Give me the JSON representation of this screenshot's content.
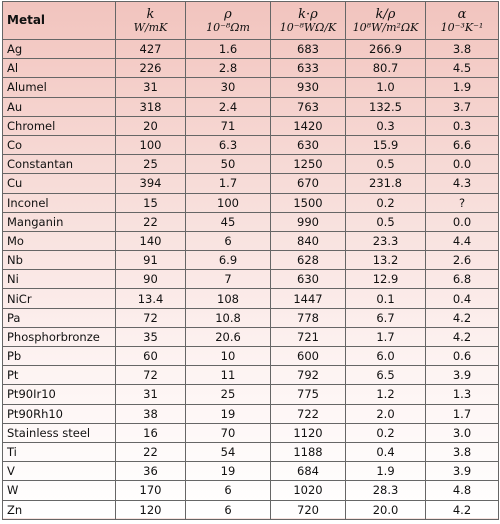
{
  "table": {
    "header": [
      {
        "symbol": "Metal"
      },
      {
        "symbol": "k",
        "unit": "W/mK"
      },
      {
        "symbol": "ρ",
        "unit": "10⁻⁸Ωm"
      },
      {
        "symbol": "k·ρ",
        "unit": "10⁻⁸WΩ/K"
      },
      {
        "symbol": "k/ρ",
        "unit": "10⁸W/m²ΩK"
      },
      {
        "symbol": "α",
        "unit": "10⁻³K⁻¹"
      }
    ],
    "rows": [
      [
        "Ag",
        "427",
        "1.6",
        "683",
        "266.9",
        "3.8"
      ],
      [
        "Al",
        "226",
        "2.8",
        "633",
        "80.7",
        "4.5"
      ],
      [
        "Alumel",
        "31",
        "30",
        "930",
        "1.0",
        "1.9"
      ],
      [
        "Au",
        "318",
        "2.4",
        "763",
        "132.5",
        "3.7"
      ],
      [
        "Chromel",
        "20",
        "71",
        "1420",
        "0.3",
        "0.3"
      ],
      [
        "Co",
        "100",
        "6.3",
        "630",
        "15.9",
        "6.6"
      ],
      [
        "Constantan",
        "25",
        "50",
        "1250",
        "0.5",
        "0.0"
      ],
      [
        "Cu",
        "394",
        "1.7",
        "670",
        "231.8",
        "4.3"
      ],
      [
        "Inconel",
        "15",
        "100",
        "1500",
        "0.2",
        "?"
      ],
      [
        "Manganin",
        "22",
        "45",
        "990",
        "0.5",
        "0.0"
      ],
      [
        "Mo",
        "140",
        "6",
        "840",
        "23.3",
        "4.4"
      ],
      [
        "Nb",
        "91",
        "6.9",
        "628",
        "13.2",
        "2.6"
      ],
      [
        "Ni",
        "90",
        "7",
        "630",
        "12.9",
        "6.8"
      ],
      [
        "NiCr",
        "13.4",
        "108",
        "1447",
        "0.1",
        "0.4"
      ],
      [
        "Pa",
        "72",
        "10.8",
        "778",
        "6.7",
        "4.2"
      ],
      [
        "Phosphorbronze",
        "35",
        "20.6",
        "721",
        "1.7",
        "4.2"
      ],
      [
        "Pb",
        "60",
        "10",
        "600",
        "6.0",
        "0.6"
      ],
      [
        "Pt",
        "72",
        "11",
        "792",
        "6.5",
        "3.9"
      ],
      [
        "Pt90Ir10",
        "31",
        "25",
        "775",
        "1.2",
        "1.3"
      ],
      [
        "Pt90Rh10",
        "38",
        "19",
        "722",
        "2.0",
        "1.7"
      ],
      [
        "Stainless steel",
        "16",
        "70",
        "1120",
        "0.2",
        "3.0"
      ],
      [
        "Ti",
        "22",
        "54",
        "1188",
        "0.4",
        "3.8"
      ],
      [
        "V",
        "36",
        "19",
        "684",
        "1.9",
        "3.9"
      ],
      [
        "W",
        "170",
        "6",
        "1020",
        "28.3",
        "4.8"
      ],
      [
        "Zn",
        "120",
        "6",
        "720",
        "20.0",
        "4.2"
      ]
    ]
  }
}
